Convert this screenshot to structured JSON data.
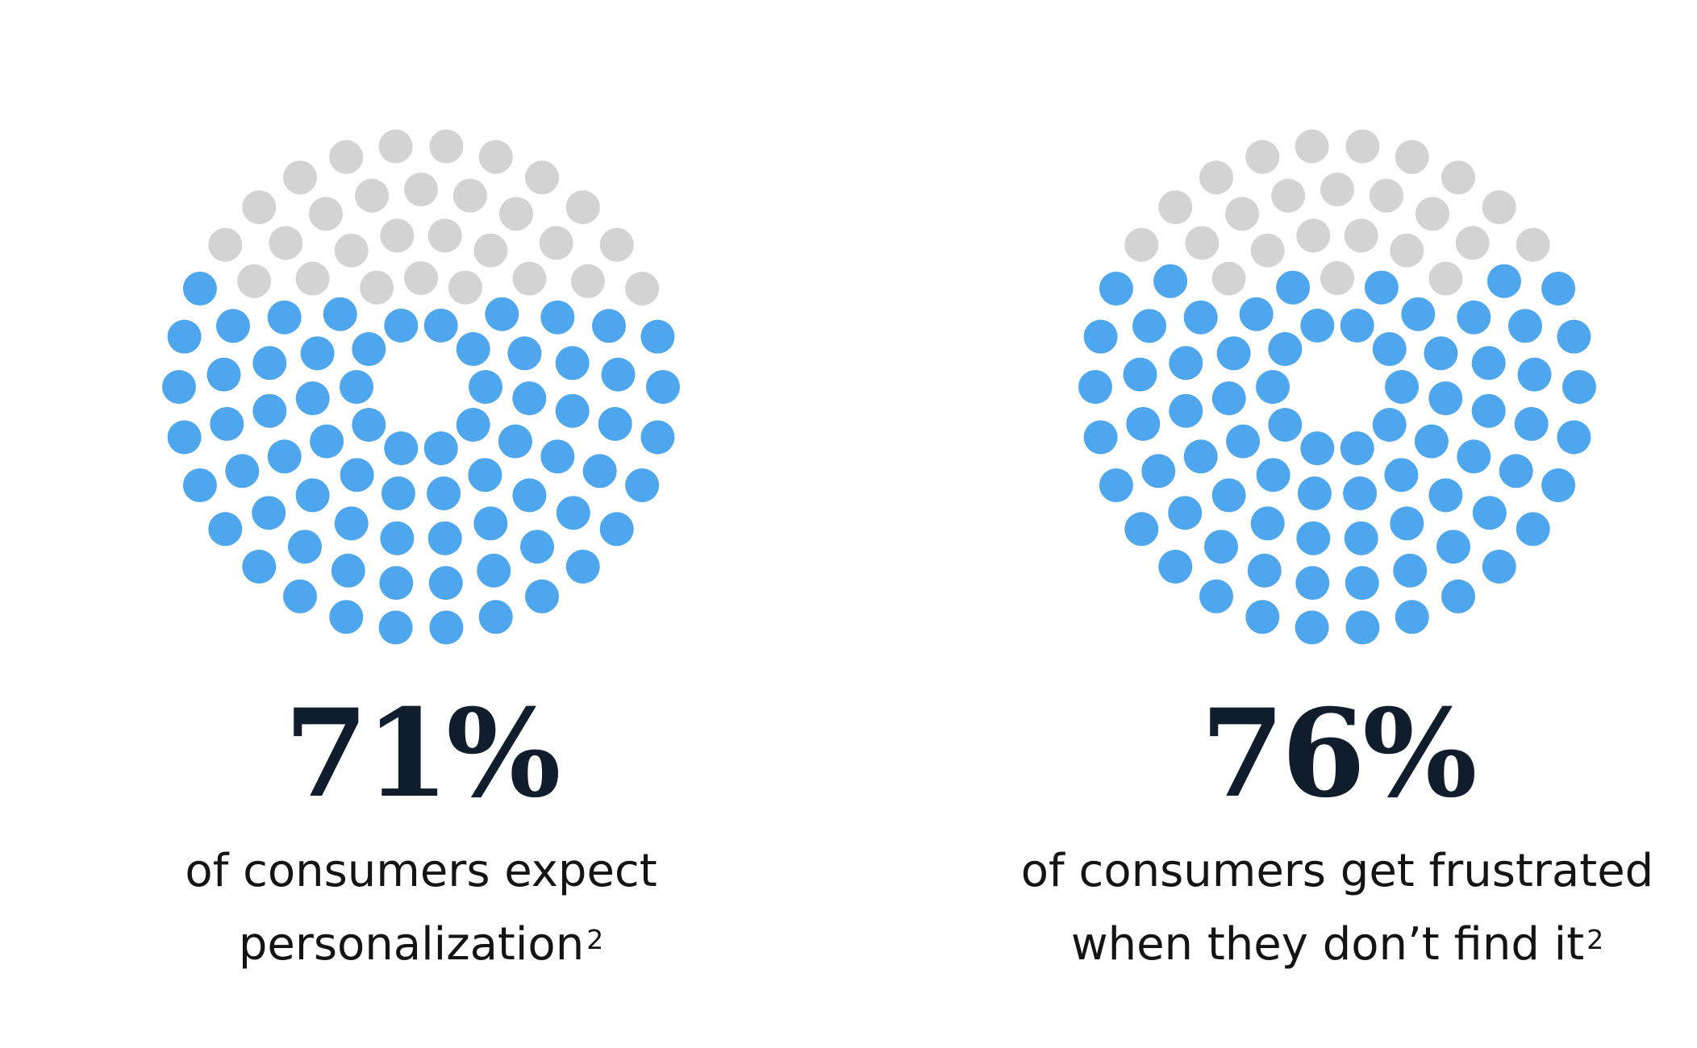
{
  "chart_data": [
    {
      "type": "dot-matrix",
      "value": 71,
      "value_label": "71%",
      "caption": [
        "of consumers expect",
        "personalization"
      ],
      "footnote": "2"
    },
    {
      "type": "dot-matrix",
      "value": 76,
      "value_label": "76%",
      "caption": [
        "of consumers get frustrated",
        "when they don’t find it"
      ],
      "footnote": "2"
    }
  ],
  "colors": {
    "highlight": "#4ea6ee",
    "remainder": "#d3d3d3",
    "value_text": "#0f1d2c",
    "caption_text": "#141414"
  }
}
